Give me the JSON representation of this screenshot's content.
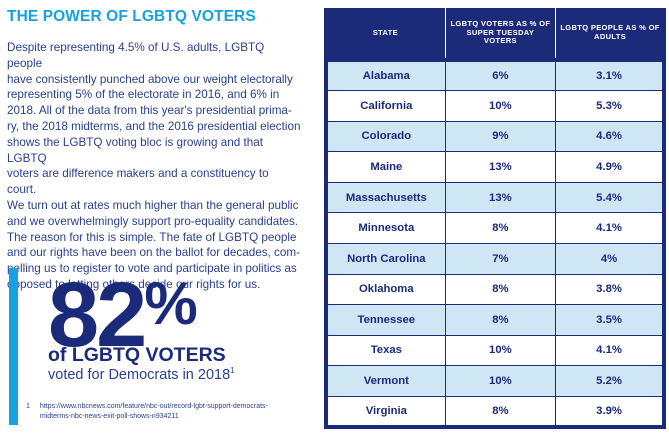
{
  "title": "THE POWER OF LGBTQ VOTERS",
  "body_lines": [
    "Despite representing 4.5% of U.S. adults, LGBTQ people",
    "have consistently punched above our weight electorally",
    "representing 5% of the electorate in 2016, and 6% in",
    "2018. All of the data from this year's presidential prima-",
    "ry, the 2018 midterms, and the 2016 presidential election",
    "shows the LGBTQ voting bloc is growing and that LGBTQ",
    "voters are difference makers and a constituency to court.",
    "We turn out at rates much higher than the general public",
    "and we overwhelmingly support pro-equality candidates.",
    "The reason for this is simple.  The fate of LGBTQ people",
    "and our rights have been on the ballot for decades, com-",
    "pelling us to register to vote and participate in politics as",
    "opposed to letting others decide our rights for us."
  ],
  "stat": {
    "number": "82",
    "percent_sign": "%",
    "headline": "of LGBTQ VOTERS",
    "sub": "voted for Democrats in 2018",
    "sub_footnote_mark": "1"
  },
  "footnote": {
    "number": "1",
    "text": "https://www.nbcnews.com/feature/nbc-out/record-lgbt-support-democrats-midterms-nbc-news-exit-poll-shows-n934211"
  },
  "colors": {
    "accent": "#16a2e0",
    "navy": "#1c2a7a",
    "row_tint": "#cfe6f5"
  },
  "table": {
    "headers": [
      "STATE",
      "LGBTQ VOTERS AS % OF SUPER TUESDAY VOTERS",
      "LGBTQ PEOPLE AS % OF ADULTS"
    ],
    "rows": [
      {
        "state": "Alabama",
        "voters": "6%",
        "adults": "3.1%"
      },
      {
        "state": "California",
        "voters": "10%",
        "adults": "5.3%"
      },
      {
        "state": "Colorado",
        "voters": "9%",
        "adults": "4.6%"
      },
      {
        "state": "Maine",
        "voters": "13%",
        "adults": "4.9%"
      },
      {
        "state": "Massachusetts",
        "voters": "13%",
        "adults": "5.4%"
      },
      {
        "state": "Minnesota",
        "voters": "8%",
        "adults": "4.1%"
      },
      {
        "state": "North Carolina",
        "voters": "7%",
        "adults": "4%"
      },
      {
        "state": "Oklahoma",
        "voters": "8%",
        "adults": "3.8%"
      },
      {
        "state": "Tennessee",
        "voters": "8%",
        "adults": "3.5%"
      },
      {
        "state": "Texas",
        "voters": "10%",
        "adults": "4.1%"
      },
      {
        "state": "Vermont",
        "voters": "10%",
        "adults": "5.2%"
      },
      {
        "state": "Virginia",
        "voters": "8%",
        "adults": "3.9%"
      }
    ]
  }
}
